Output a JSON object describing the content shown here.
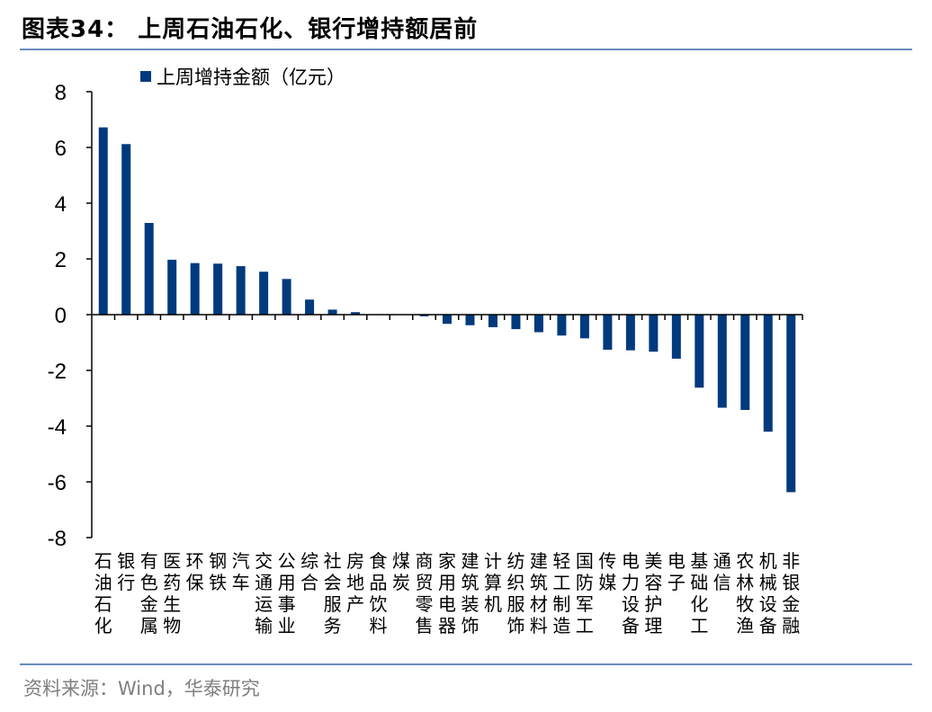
{
  "header": {
    "title": "图表34：  上周石油石化、银行增持额居前"
  },
  "footer": {
    "source": "资料来源：Wind，华泰研究"
  },
  "colors": {
    "bar": "#003a7d",
    "rule": "#6a8cbf",
    "source_text": "#7f7f7f"
  },
  "chart_data": {
    "type": "bar",
    "title": "上周石油石化、银行增持额居前",
    "xlabel": "",
    "ylabel": "",
    "ylim": [
      -8,
      8
    ],
    "yticks": [
      8,
      6,
      4,
      2,
      0,
      -2,
      -4,
      -6,
      -8
    ],
    "grid": false,
    "legend_position": "top-left",
    "categories": [
      "石油石化",
      "银行",
      "有色金属",
      "医药生物",
      "环保",
      "钢铁",
      "汽车",
      "交通运输",
      "公用事业",
      "综合",
      "社会服务",
      "房地产",
      "食品饮料",
      "煤炭",
      "商贸零售",
      "家用电器",
      "建筑装饰",
      "计算机",
      "纺织服饰",
      "建筑材料",
      "轻工制造",
      "国防军工",
      "传媒",
      "电力设备",
      "美容护理",
      "电子",
      "基础化工",
      "通信",
      "农林牧渔",
      "机械设备",
      "非银金融"
    ],
    "series": [
      {
        "name": "上周增持金额（亿元）",
        "color": "#003a7d",
        "values": [
          6.72,
          6.12,
          3.29,
          1.97,
          1.85,
          1.83,
          1.74,
          1.54,
          1.28,
          0.54,
          0.18,
          0.09,
          0.0,
          0.0,
          -0.06,
          -0.33,
          -0.38,
          -0.45,
          -0.52,
          -0.63,
          -0.75,
          -0.85,
          -1.26,
          -1.28,
          -1.33,
          -1.58,
          -2.62,
          -3.34,
          -3.42,
          -4.2,
          -6.37
        ]
      }
    ]
  }
}
